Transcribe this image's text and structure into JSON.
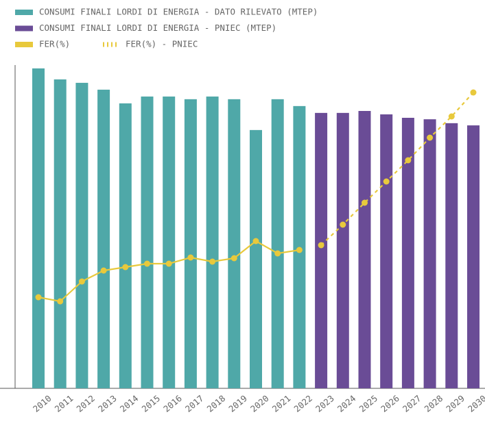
{
  "chart_data": {
    "type": "bar",
    "categories": [
      "2010",
      "2011",
      "2012",
      "2013",
      "2014",
      "2015",
      "2016",
      "2017",
      "2018",
      "2019",
      "2020",
      "2021",
      "2022",
      "2023",
      "2024",
      "2025",
      "2026",
      "2027",
      "2028",
      "2029",
      "2030"
    ],
    "ylim": [
      0,
      140
    ],
    "y2lim": [
      0,
      50
    ],
    "series": [
      {
        "name": "CONSUMI FINALI LORDI DI ENERGIA - DATO RILEVATO (MTEP)",
        "type": "bar",
        "color": "#4fa8a8",
        "values": [
          130.8,
          126.3,
          124.9,
          122.1,
          116.5,
          119.3,
          119.3,
          118.2,
          119.3,
          118.2,
          105.6,
          118.2,
          115.4,
          null,
          null,
          null,
          null,
          null,
          null,
          null,
          null
        ]
      },
      {
        "name": "CONSUMI FINALI LORDI DI ENERGIA - PNIEC (MTEP)",
        "type": "bar",
        "color": "#6a4c96",
        "values": [
          null,
          null,
          null,
          null,
          null,
          null,
          null,
          null,
          null,
          null,
          null,
          null,
          null,
          112.6,
          112.6,
          113.4,
          112.0,
          110.6,
          110.0,
          108.4,
          107.5
        ]
      },
      {
        "name": "FER(%)",
        "type": "line",
        "axis": "y2",
        "color": "#e8c93c",
        "dashed": false,
        "values": [
          13.3,
          12.7,
          15.6,
          17.2,
          17.7,
          18.2,
          18.2,
          19.1,
          18.5,
          19.0,
          21.5,
          19.7,
          20.2,
          null,
          null,
          null,
          null,
          null,
          null,
          null,
          null
        ]
      },
      {
        "name": "FER(%) - PNIEC",
        "type": "line",
        "axis": "y2",
        "color": "#e8c93c",
        "dashed": true,
        "values": [
          null,
          null,
          null,
          null,
          null,
          null,
          null,
          null,
          null,
          null,
          null,
          null,
          null,
          20.9,
          23.9,
          27.1,
          30.2,
          33.3,
          36.6,
          39.7,
          43.2
        ]
      }
    ]
  }
}
